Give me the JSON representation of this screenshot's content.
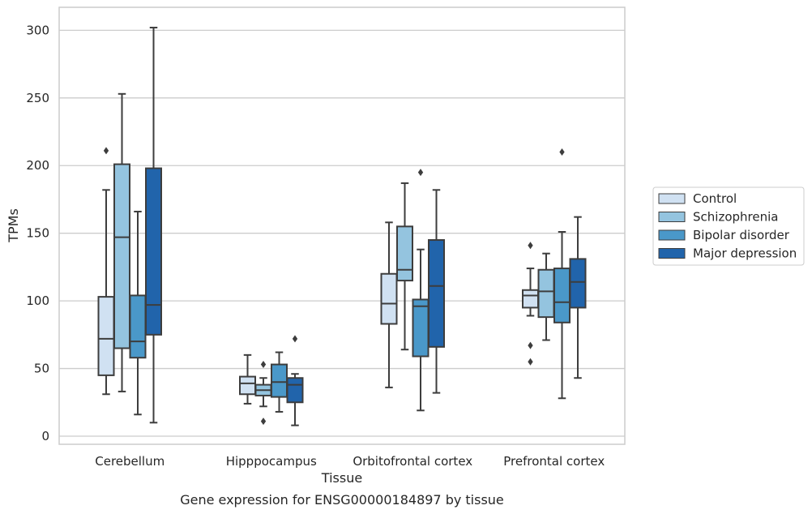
{
  "chart_data": {
    "type": "box",
    "title": "",
    "caption": "Gene expression for ENSG00000184897 by tissue",
    "xlabel": "Tissue",
    "ylabel": "TPMs",
    "ylim": [
      -6,
      317
    ],
    "yticks": [
      0,
      50,
      100,
      150,
      200,
      250,
      300
    ],
    "grid": "horizontal",
    "legend_placement": "right",
    "categories": [
      "Cerebellum",
      "Hipppocampus",
      "Orbitofrontal cortex",
      "Prefrontal cortex"
    ],
    "series": [
      {
        "name": "Control",
        "color": "#d0e1f2",
        "boxes": [
          {
            "min": 31,
            "q1": 45,
            "median": 72,
            "q3": 103,
            "max": 182,
            "outliers": [
              211
            ]
          },
          {
            "min": 24,
            "q1": 31,
            "median": 39,
            "q3": 44,
            "max": 60,
            "outliers": []
          },
          {
            "min": 36,
            "q1": 83,
            "median": 98,
            "q3": 120,
            "max": 158,
            "outliers": []
          },
          {
            "min": 89,
            "q1": 95,
            "median": 104,
            "q3": 108,
            "max": 124,
            "outliers": [
              141,
              67,
              55
            ]
          }
        ]
      },
      {
        "name": "Schizophrenia",
        "color": "#94c4df",
        "boxes": [
          {
            "min": 33,
            "q1": 65,
            "median": 147,
            "q3": 201,
            "max": 253,
            "outliers": []
          },
          {
            "min": 22,
            "q1": 30,
            "median": 34,
            "q3": 38,
            "max": 43,
            "outliers": [
              53,
              11
            ]
          },
          {
            "min": 64,
            "q1": 115,
            "median": 123,
            "q3": 155,
            "max": 187,
            "outliers": []
          },
          {
            "min": 71,
            "q1": 88,
            "median": 107,
            "q3": 123,
            "max": 135,
            "outliers": []
          }
        ]
      },
      {
        "name": "Bipolar disorder",
        "color": "#4a98c9",
        "boxes": [
          {
            "min": 16,
            "q1": 58,
            "median": 70,
            "q3": 104,
            "max": 166,
            "outliers": []
          },
          {
            "min": 18,
            "q1": 29,
            "median": 40,
            "q3": 53,
            "max": 62,
            "outliers": []
          },
          {
            "min": 19,
            "q1": 59,
            "median": 96,
            "q3": 101,
            "max": 138,
            "outliers": [
              195
            ]
          },
          {
            "min": 28,
            "q1": 84,
            "median": 99,
            "q3": 124,
            "max": 151,
            "outliers": [
              210
            ]
          }
        ]
      },
      {
        "name": "Major depression",
        "color": "#2164ab",
        "boxes": [
          {
            "min": 10,
            "q1": 75,
            "median": 97,
            "q3": 198,
            "max": 302,
            "outliers": []
          },
          {
            "min": 8,
            "q1": 25,
            "median": 38,
            "q3": 43,
            "max": 46,
            "outliers": [
              72
            ]
          },
          {
            "min": 32,
            "q1": 66,
            "median": 111,
            "q3": 145,
            "max": 182,
            "outliers": []
          },
          {
            "min": 43,
            "q1": 95,
            "median": 114,
            "q3": 131,
            "max": 162,
            "outliers": []
          }
        ]
      }
    ]
  }
}
